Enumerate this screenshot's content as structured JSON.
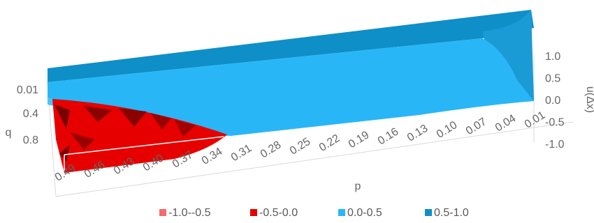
{
  "chart_data": {
    "type": "surface",
    "title": "",
    "xlabel": "p",
    "ylabel": "q",
    "zlabel": "u(Δx)",
    "p_ticks": [
      "0.49",
      "0.46",
      "0.43",
      "0.40",
      "0.37",
      "0.34",
      "0.31",
      "0.28",
      "0.25",
      "0.22",
      "0.19",
      "0.16",
      "0.13",
      "0.10",
      "0.07",
      "0.04",
      "0.01"
    ],
    "q_ticks": [
      "0.01",
      "0.4",
      "0.8"
    ],
    "z_ticks": [
      "1.0",
      "0.5",
      "0.0",
      "-0.5",
      "-1.0"
    ],
    "zlim": [
      -1.0,
      1.0
    ],
    "legend": {
      "position": "bottom",
      "items": [
        {
          "label": "-1.0--0.5",
          "color": "#f36b6b"
        },
        {
          "label": "-0.5-0.0",
          "color": "#e60000"
        },
        {
          "label": "0.0-0.5",
          "color": "#29b6f6"
        },
        {
          "label": "0.5-1.0",
          "color": "#0f8fc7"
        }
      ]
    },
    "regions": [
      {
        "band": "0.5-1.0",
        "description_range": "high p-rows near q=0.01 rear wall"
      },
      {
        "band": "0.0-0.5",
        "description_range": "main surface"
      },
      {
        "band": "-0.5-0.0",
        "p_range": [
          0.34,
          0.49
        ],
        "q_range": [
          0.01,
          0.8
        ]
      }
    ],
    "colors": {
      "band_high": "#0f8fc7",
      "band_mid": "#29b6f6",
      "band_neg": "#e60000",
      "band_neg_dark": "#8a0000",
      "grid": "#d9d9d9",
      "text": "#666666"
    }
  }
}
